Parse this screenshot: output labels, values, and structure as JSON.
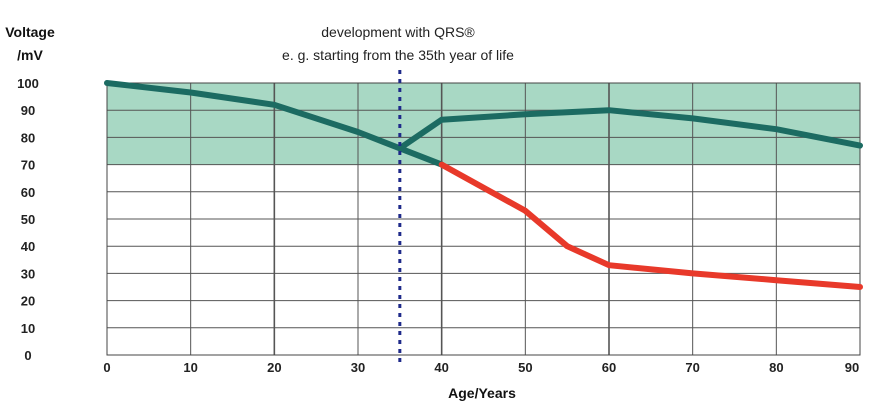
{
  "chart_data": {
    "type": "line",
    "ylabel_line1": "Voltage",
    "ylabel_line2": "/mV",
    "xlabel": "Age/Years",
    "xlim": [
      0,
      90
    ],
    "ylim": [
      0,
      100
    ],
    "x_ticks": [
      "0",
      "10",
      "20",
      "30",
      "40",
      "50",
      "60",
      "70",
      "80",
      "90"
    ],
    "y_ticks": [
      "100",
      "90",
      "80",
      "70",
      "60",
      "50",
      "40",
      "30",
      "20",
      "10",
      "0"
    ],
    "grid": true,
    "shaded_band": {
      "y_from": 70,
      "y_to": 100,
      "color": "#a8d8c4"
    },
    "annotation": {
      "line1": "development with QRS®",
      "line2": "e. g. starting from the 35th year of life",
      "x": 35
    },
    "series": [
      {
        "color": "#1c6b62",
        "points": [
          [
            0,
            100
          ],
          [
            10,
            96.5
          ],
          [
            20,
            92
          ],
          [
            30,
            82
          ],
          [
            35,
            76
          ],
          [
            40,
            70
          ]
        ]
      },
      {
        "color": "#1c6b62",
        "points": [
          [
            35,
            76
          ],
          [
            40,
            86.5
          ],
          [
            50,
            88.5
          ],
          [
            60,
            90
          ],
          [
            70,
            87
          ],
          [
            80,
            83
          ],
          [
            90,
            77
          ]
        ]
      },
      {
        "color": "#e8392a",
        "points": [
          [
            40,
            70
          ],
          [
            50,
            53
          ],
          [
            55,
            40
          ],
          [
            60,
            33
          ],
          [
            70,
            30
          ],
          [
            80,
            27.5
          ],
          [
            90,
            25
          ]
        ]
      }
    ]
  }
}
